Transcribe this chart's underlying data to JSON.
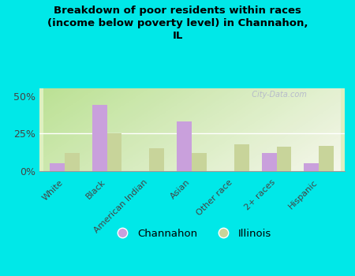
{
  "title": "Breakdown of poor residents within races\n(income below poverty level) in Channahon,\nIL",
  "categories": [
    "White",
    "Black",
    "American Indian",
    "Asian",
    "Other race",
    "2+ races",
    "Hispanic"
  ],
  "channahon_values": [
    5,
    44,
    0,
    33,
    0,
    12,
    5
  ],
  "illinois_values": [
    12,
    25,
    15,
    12,
    18,
    16,
    17
  ],
  "channahon_color": "#c9a0dc",
  "illinois_color": "#c8d49a",
  "background_fig": "#00e8e8",
  "yticks": [
    0,
    25,
    50
  ],
  "ylim": [
    0,
    55
  ],
  "yticklabels": [
    "0%",
    "25%",
    "50%"
  ],
  "watermark": "  City-Data.com",
  "legend_channahon": "Channahon",
  "legend_illinois": "Illinois",
  "bar_width": 0.35
}
